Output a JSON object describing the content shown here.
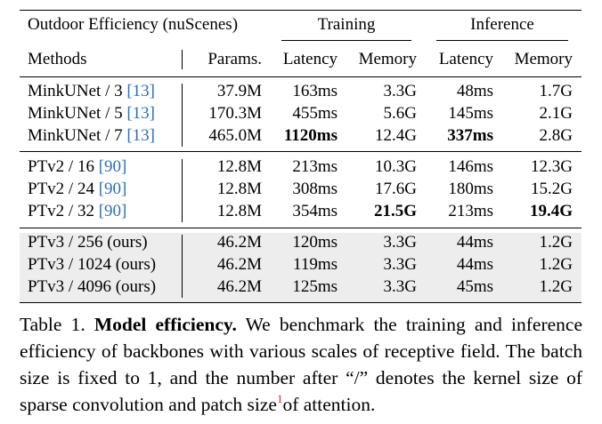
{
  "header": {
    "title": "Outdoor Efficiency (nuScenes)",
    "group_training": "Training",
    "group_inference": "Inference",
    "col_methods": "Methods",
    "col_params": "Params.",
    "col_train_latency": "Latency",
    "col_train_memory": "Memory",
    "col_infer_latency": "Latency",
    "col_infer_memory": "Memory"
  },
  "groups": [
    {
      "shaded": false,
      "rows": [
        {
          "method": "MinkUNet / 3",
          "cite": "[13]",
          "params": "37.9M",
          "train_latency": "163ms",
          "train_memory": "3.3G",
          "infer_latency": "48ms",
          "infer_memory": "1.7G",
          "bold": []
        },
        {
          "method": "MinkUNet / 5",
          "cite": "[13]",
          "params": "170.3M",
          "train_latency": "455ms",
          "train_memory": "5.6G",
          "infer_latency": "145ms",
          "infer_memory": "2.1G",
          "bold": []
        },
        {
          "method": "MinkUNet / 7",
          "cite": "[13]",
          "params": "465.0M",
          "train_latency": "1120ms",
          "train_memory": "12.4G",
          "infer_latency": "337ms",
          "infer_memory": "2.8G",
          "bold": [
            "train_latency",
            "infer_latency"
          ]
        }
      ]
    },
    {
      "shaded": false,
      "rows": [
        {
          "method": "PTv2 / 16",
          "cite": "[90]",
          "params": "12.8M",
          "train_latency": "213ms",
          "train_memory": "10.3G",
          "infer_latency": "146ms",
          "infer_memory": "12.3G",
          "bold": []
        },
        {
          "method": "PTv2 / 24",
          "cite": "[90]",
          "params": "12.8M",
          "train_latency": "308ms",
          "train_memory": "17.6G",
          "infer_latency": "180ms",
          "infer_memory": "15.2G",
          "bold": []
        },
        {
          "method": "PTv2 / 32",
          "cite": "[90]",
          "params": "12.8M",
          "train_latency": "354ms",
          "train_memory": "21.5G",
          "infer_latency": "213ms",
          "infer_memory": "19.4G",
          "bold": [
            "train_memory",
            "infer_memory"
          ]
        }
      ]
    },
    {
      "shaded": true,
      "rows": [
        {
          "method": "PTv3 / 256 (ours)",
          "cite": "",
          "params": "46.2M",
          "train_latency": "120ms",
          "train_memory": "3.3G",
          "infer_latency": "44ms",
          "infer_memory": "1.2G",
          "bold": []
        },
        {
          "method": "PTv3 / 1024 (ours)",
          "cite": "",
          "params": "46.2M",
          "train_latency": "119ms",
          "train_memory": "3.3G",
          "infer_latency": "44ms",
          "infer_memory": "1.2G",
          "bold": []
        },
        {
          "method": "PTv3 / 4096 (ours)",
          "cite": "",
          "params": "46.2M",
          "train_latency": "125ms",
          "train_memory": "3.3G",
          "infer_latency": "45ms",
          "infer_memory": "1.2G",
          "bold": []
        }
      ]
    }
  ],
  "caption": {
    "label": "Table 1.",
    "title": "Model efficiency.",
    "text_before_footnote": " We benchmark the training and inference efficiency of backbones with various scales of receptive field. The batch size is fixed to 1, and the number after “/” denotes the kernel size of sparse convolution and patch size",
    "footnote_mark": "1",
    "text_after_footnote": "of attention."
  },
  "colors": {
    "citation": "#2f6fb3",
    "footnote": "#d0262a",
    "shade": "#ededed"
  }
}
